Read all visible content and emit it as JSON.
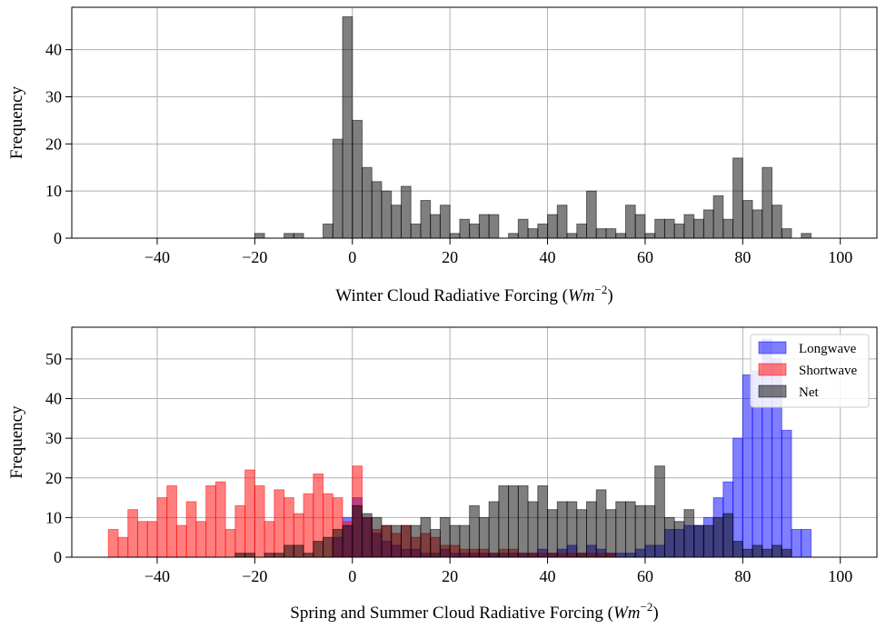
{
  "chart_data": [
    {
      "type": "bar",
      "subtype": "histogram",
      "xlabel": "Winter Cloud Radiative Forcing (Wm^{-2})",
      "xlabel_main": "Winter Cloud Radiative Forcing (",
      "xlabel_unit_base": "Wm",
      "xlabel_unit_exp": "−2",
      "xlabel_close": ")",
      "ylabel": "Frequency",
      "xlim": [
        -57.5,
        107.5
      ],
      "ylim": [
        0,
        49
      ],
      "xticks": [
        -40,
        -20,
        0,
        20,
        40,
        60,
        80,
        100
      ],
      "xtick_labels": [
        "−40",
        "−20",
        "0",
        "20",
        "40",
        "60",
        "80",
        "100"
      ],
      "yticks": [
        0,
        10,
        20,
        30,
        40
      ],
      "ytick_labels": [
        "0",
        "10",
        "20",
        "30",
        "40"
      ],
      "grid": true,
      "bins": {
        "start": -50,
        "width": 2,
        "count": 75
      },
      "series": [
        {
          "color": "#000000",
          "alpha": 0.5,
          "values": [
            0,
            0,
            0,
            0,
            0,
            0,
            0,
            0,
            0,
            0,
            0,
            0,
            0,
            0,
            0,
            1,
            0,
            0,
            1,
            1,
            0,
            0,
            3,
            21,
            47,
            25,
            15,
            12,
            10,
            7,
            11,
            3,
            8,
            5,
            7,
            1,
            4,
            3,
            5,
            5,
            0,
            1,
            4,
            2,
            3,
            5,
            7,
            1,
            3,
            10,
            2,
            2,
            1,
            7,
            5,
            1,
            4,
            4,
            3,
            5,
            4,
            6,
            9,
            4,
            17,
            8,
            6,
            15,
            7,
            2,
            0,
            1,
            0,
            0,
            0
          ]
        }
      ]
    },
    {
      "type": "bar",
      "subtype": "histogram",
      "xlabel": "Spring and Summer Cloud Radiative Forcing (Wm^{-2})",
      "xlabel_main": "Spring and Summer Cloud Radiative Forcing (",
      "xlabel_unit_base": "Wm",
      "xlabel_unit_exp": "−2",
      "xlabel_close": ")",
      "ylabel": "Frequency",
      "xlim": [
        -57.5,
        107.5
      ],
      "ylim": [
        0,
        58
      ],
      "xticks": [
        -40,
        -20,
        0,
        20,
        40,
        60,
        80,
        100
      ],
      "xtick_labels": [
        "−40",
        "−20",
        "0",
        "20",
        "40",
        "60",
        "80",
        "100"
      ],
      "yticks": [
        0,
        10,
        20,
        30,
        40,
        50
      ],
      "ytick_labels": [
        "0",
        "10",
        "20",
        "30",
        "40",
        "50"
      ],
      "grid": true,
      "legend_position": "top-right",
      "bins": {
        "start": -50,
        "width": 2,
        "count": 75
      },
      "series": [
        {
          "name": "Longwave",
          "color": "#0000ff",
          "alpha": 0.5,
          "values": [
            0,
            0,
            0,
            0,
            0,
            0,
            0,
            0,
            0,
            0,
            0,
            0,
            0,
            0,
            0,
            0,
            0,
            0,
            0,
            0,
            0,
            0,
            0,
            5,
            10,
            15,
            10,
            6,
            4,
            3,
            2,
            2,
            1,
            1,
            2,
            1,
            1,
            1,
            1,
            1,
            1,
            1,
            1,
            1,
            2,
            1,
            2,
            3,
            1,
            3,
            2,
            1,
            1,
            1,
            2,
            3,
            3,
            7,
            7,
            8,
            8,
            10,
            15,
            19,
            30,
            46,
            47,
            55,
            50,
            32,
            7,
            7,
            0,
            0,
            0
          ]
        },
        {
          "name": "Shortwave",
          "color": "#ff0000",
          "alpha": 0.5,
          "values": [
            7,
            5,
            12,
            9,
            9,
            15,
            18,
            8,
            14,
            9,
            18,
            19,
            7,
            13,
            22,
            18,
            9,
            17,
            15,
            11,
            16,
            21,
            16,
            15,
            9,
            23,
            10,
            7,
            8,
            6,
            8,
            5,
            6,
            5,
            3,
            3,
            2,
            2,
            2,
            1,
            2,
            2,
            1,
            1,
            1,
            1,
            1,
            1,
            1,
            1,
            1,
            1,
            0,
            0,
            0,
            0,
            0,
            0,
            0,
            0,
            0,
            0,
            0,
            0,
            0,
            0,
            0,
            0,
            0,
            0,
            0,
            0,
            0,
            0,
            0
          ]
        },
        {
          "name": "Net",
          "color": "#000000",
          "alpha": 0.5,
          "values": [
            0,
            0,
            0,
            0,
            0,
            0,
            0,
            0,
            0,
            0,
            0,
            0,
            0,
            1,
            1,
            0,
            1,
            1,
            3,
            3,
            1,
            4,
            5,
            7,
            8,
            13,
            11,
            10,
            8,
            8,
            8,
            8,
            10,
            7,
            10,
            8,
            8,
            13,
            10,
            14,
            18,
            18,
            18,
            14,
            18,
            12,
            14,
            14,
            12,
            14,
            17,
            12,
            14,
            14,
            13,
            13,
            23,
            10,
            9,
            12,
            8,
            8,
            10,
            11,
            4,
            2,
            3,
            2,
            3,
            2,
            0,
            0,
            0,
            0,
            0
          ]
        }
      ]
    }
  ]
}
